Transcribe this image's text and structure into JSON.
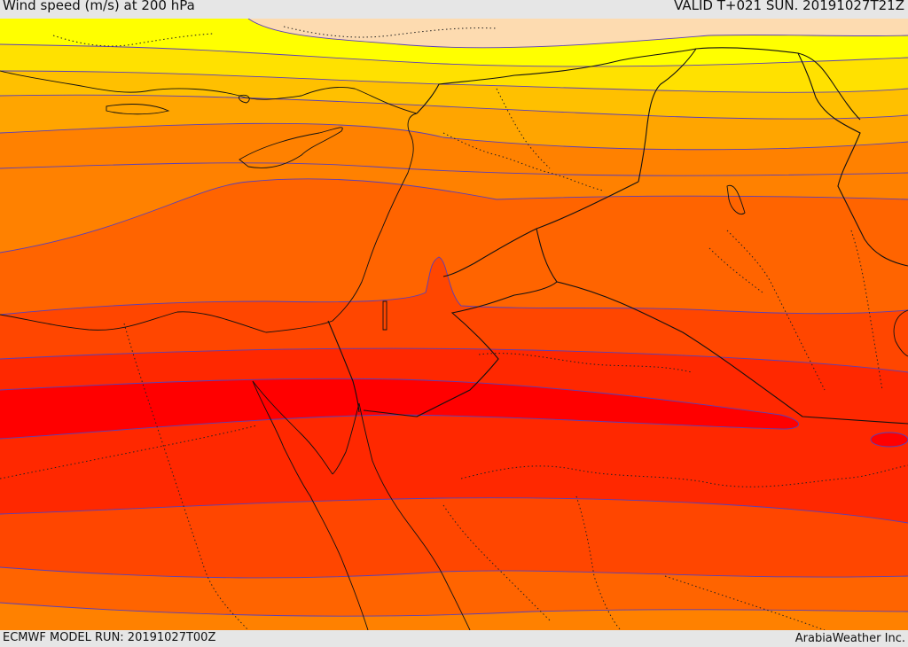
{
  "header": {
    "title": "Wind speed (m/s) at 200 hPa",
    "valid": "VALID T+021 SUN. 20191027T21Z"
  },
  "footer": {
    "model_run": "ECMWF MODEL RUN: 20191027T00Z",
    "provider": "ArabiaWeather Inc."
  },
  "colors": {
    "band1": "#fddbb0",
    "band2": "#ffff00",
    "band3": "#ffe100",
    "band4": "#ffc000",
    "band5": "#ffa500",
    "band6": "#ff8100",
    "band7": "#ff6400",
    "band8": "#ff4600",
    "band9": "#ff2800",
    "band10": "#ff0000"
  }
}
